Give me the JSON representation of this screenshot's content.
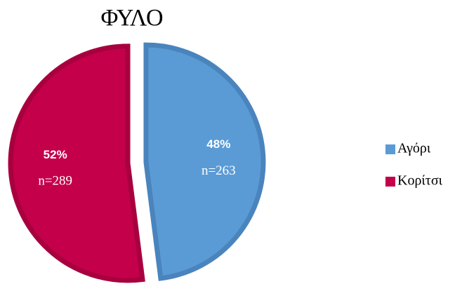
{
  "chart_data": {
    "type": "pie",
    "title": "ΦΥΛΟ",
    "categories": [
      "Αγόρι",
      "Κορίτσι"
    ],
    "values": [
      48,
      52
    ],
    "value_labels": [
      "48%",
      "52%"
    ],
    "counts": [
      263,
      289
    ],
    "count_labels": [
      "n=263",
      "n=289"
    ],
    "colors": [
      "#5b9bd5",
      "#c4004b"
    ],
    "edge_colors": [
      "#4a84bd",
      "#a8003f"
    ],
    "exploded": true,
    "legend": "right"
  }
}
